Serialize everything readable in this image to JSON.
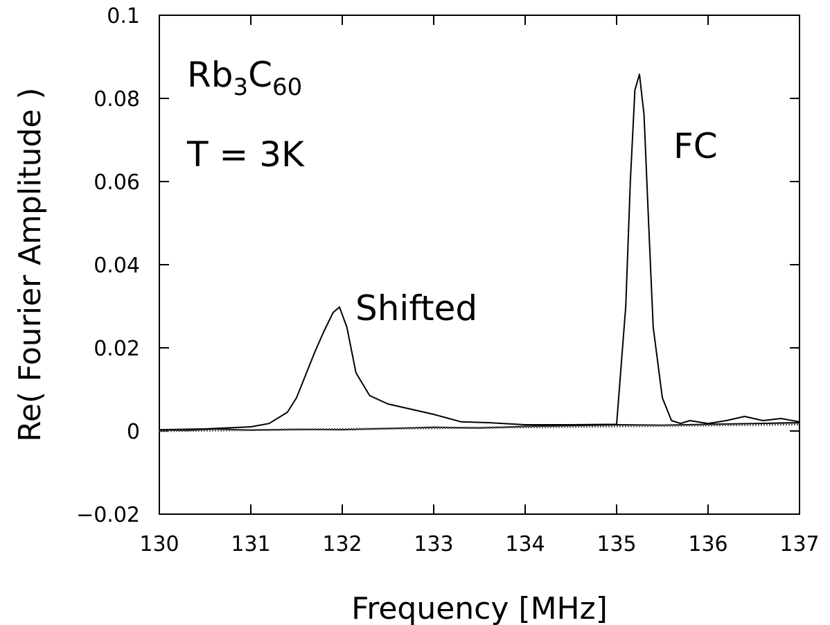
{
  "chart_data": {
    "type": "line",
    "xlabel": "Frequency [MHz]",
    "ylabel": "Re( Fourier Amplitude )",
    "xlim": [
      130,
      137
    ],
    "ylim": [
      -0.02,
      0.1
    ],
    "xticks": [
      130,
      131,
      132,
      133,
      134,
      135,
      136,
      137
    ],
    "yticks": [
      -0.02,
      0,
      0.02,
      0.04,
      0.06,
      0.08,
      0.1
    ],
    "ytick_labels": [
      "−0.02",
      "0",
      "0.02",
      "0.04",
      "0.06",
      "0.08",
      "0.1"
    ],
    "grid": false,
    "annotations": {
      "compound_main1": "Rb",
      "compound_sub1": "3",
      "compound_main2": "C",
      "compound_sub2": "60",
      "temperature": "T = 3K",
      "shifted": "Shifted",
      "fc": "FC"
    },
    "series": [
      {
        "style": "solid",
        "x": [
          130.0,
          130.5,
          131.0,
          131.2,
          131.4,
          131.5,
          131.6,
          131.7,
          131.8,
          131.9,
          131.97,
          132.05,
          132.15,
          132.3,
          132.5,
          132.8,
          133.0,
          133.3,
          133.6,
          134.0,
          134.5,
          135.0,
          135.1,
          135.15,
          135.2,
          135.25,
          135.3,
          135.35,
          135.4,
          135.5,
          135.6,
          135.7,
          135.8,
          136.0,
          136.2,
          136.4,
          136.6,
          136.8,
          137.0
        ],
        "y": [
          0.0003,
          0.0005,
          0.001,
          0.0018,
          0.0045,
          0.008,
          0.0135,
          0.019,
          0.024,
          0.0285,
          0.0298,
          0.025,
          0.014,
          0.0085,
          0.0065,
          0.005,
          0.004,
          0.0022,
          0.002,
          0.0015,
          0.0015,
          0.0016,
          0.03,
          0.06,
          0.082,
          0.0858,
          0.076,
          0.05,
          0.025,
          0.008,
          0.0025,
          0.0018,
          0.0025,
          0.0018,
          0.0025,
          0.0035,
          0.0025,
          0.003,
          0.0022
        ]
      },
      {
        "style": "solid",
        "x": [
          130.0,
          130.3,
          130.6,
          131.0,
          131.5,
          132.0,
          132.5,
          133.0,
          133.5,
          134.0,
          134.5,
          135.0,
          135.5,
          136.0,
          136.5,
          137.0
        ],
        "y": [
          0.0003,
          0.0001,
          0.0005,
          0.0002,
          0.0004,
          0.0003,
          0.0006,
          0.0009,
          0.0007,
          0.0011,
          0.0013,
          0.0015,
          0.0014,
          0.0016,
          0.0018,
          0.002
        ]
      },
      {
        "style": "dotted",
        "x": [
          130.0,
          137.0
        ],
        "y": [
          0.0,
          0.0016
        ]
      }
    ]
  }
}
